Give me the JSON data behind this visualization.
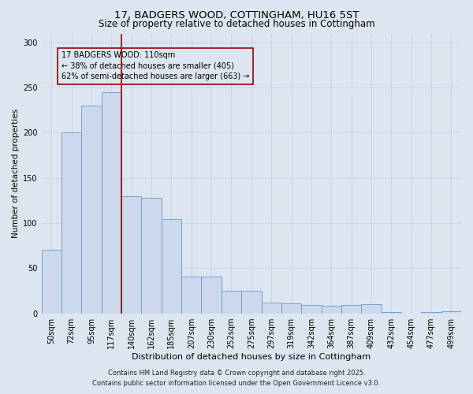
{
  "title1": "17, BADGERS WOOD, COTTINGHAM, HU16 5ST",
  "title2": "Size of property relative to detached houses in Cottingham",
  "xlabel": "Distribution of detached houses by size in Cottingham",
  "ylabel": "Number of detached properties",
  "footer1": "Contains HM Land Registry data © Crown copyright and database right 2025.",
  "footer2": "Contains public sector information licensed under the Open Government Licence v3.0.",
  "annotation_title": "17 BADGERS WOOD: 110sqm",
  "annotation_line1": "← 38% of detached houses are smaller (405)",
  "annotation_line2": "62% of semi-detached houses are larger (663) →",
  "bar_color": "#ccd9ed",
  "bar_edge_color": "#6699cc",
  "vline_color": "#990000",
  "annotation_box_edge": "#990000",
  "grid_color": "#c8d4e8",
  "background_color": "#dde6f0",
  "categories": [
    "50sqm",
    "72sqm",
    "95sqm",
    "117sqm",
    "140sqm",
    "162sqm",
    "185sqm",
    "207sqm",
    "230sqm",
    "252sqm",
    "275sqm",
    "297sqm",
    "319sqm",
    "342sqm",
    "364sqm",
    "387sqm",
    "409sqm",
    "432sqm",
    "454sqm",
    "477sqm",
    "499sqm"
  ],
  "values": [
    70,
    200,
    230,
    245,
    130,
    128,
    104,
    41,
    41,
    25,
    25,
    12,
    11,
    9,
    8,
    9,
    10,
    1,
    0,
    1,
    2
  ],
  "vline_x": 3.5,
  "ylim": [
    0,
    310
  ],
  "yticks": [
    0,
    50,
    100,
    150,
    200,
    250,
    300
  ],
  "title1_fontsize": 9.5,
  "title2_fontsize": 8.5,
  "xlabel_fontsize": 8,
  "ylabel_fontsize": 7.5,
  "tick_fontsize": 7,
  "annotation_fontsize": 7,
  "footer_fontsize": 6
}
